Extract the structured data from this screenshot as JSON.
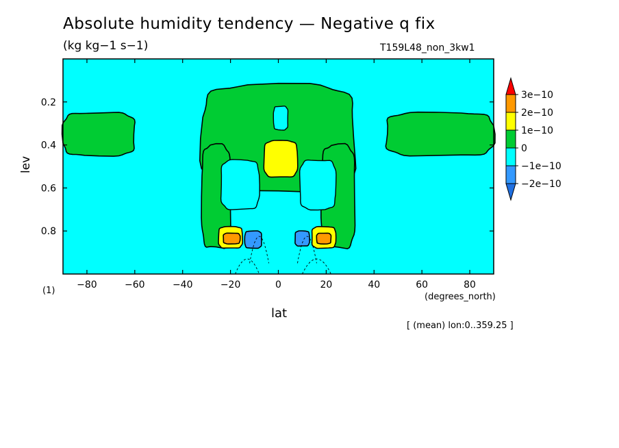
{
  "header": {
    "title": "Absolute humidity tendency — Negative q fix",
    "units": "(kg kg−1 s−1)",
    "run_id": "T159L48_non_3kw1"
  },
  "axes": {
    "x_name": "lat",
    "x_units": "(degrees_north)",
    "y_name": "lev",
    "y_units": "(1)"
  },
  "footnote": "[ (mean) lon:0..359.25 ]",
  "colors": {
    "background": "#00ffff",
    "green": "#00cc33",
    "yellow": "#ffff00",
    "orange": "#ff9900",
    "red": "#ff0000",
    "blue": "#3399ff",
    "frame": "#000000"
  },
  "chart_data": {
    "type": "heatmap",
    "x_ticks": [
      "−80",
      "−60",
      "−40",
      "−20",
      "0",
      "20",
      "40",
      "60",
      "80"
    ],
    "x_tick_values": [
      -80,
      -60,
      -40,
      -20,
      0,
      20,
      40,
      60,
      80
    ],
    "y_ticks": [
      "0.2",
      "0.4",
      "0.6",
      "0.8"
    ],
    "y_tick_values": [
      0.2,
      0.4,
      0.6,
      0.8
    ],
    "xlim": [
      -90,
      90
    ],
    "ylim": [
      1.0,
      0.0
    ],
    "colorbar": {
      "levels": [
        "3e−10",
        "2e−10",
        "1e−10",
        "0",
        "−1e−10",
        "−2e−10"
      ],
      "colors": [
        "#ff0000",
        "#ff9900",
        "#ffff00",
        "#00cc33",
        "#00ffff",
        "#3399ff",
        "#1f6fe0"
      ]
    },
    "regions": [
      {
        "name": "green_tropical_upper",
        "level": "0 to 1e-10",
        "lat": [
          -32,
          32
        ],
        "lev": [
          0.12,
          0.62
        ]
      },
      {
        "name": "green_sh_column",
        "level": "0 to 1e-10",
        "lat": [
          -32,
          -20
        ],
        "lev": [
          0.4,
          0.88
        ]
      },
      {
        "name": "green_nh_column",
        "level": "0 to 1e-10",
        "lat": [
          18,
          32
        ],
        "lev": [
          0.4,
          0.88
        ]
      },
      {
        "name": "green_sh_midlat_band",
        "level": "0 to 1e-10",
        "lat": [
          -90,
          -60
        ],
        "lev": [
          0.25,
          0.45
        ]
      },
      {
        "name": "green_nh_midlat_band",
        "level": "0 to 1e-10",
        "lat": [
          45,
          90
        ],
        "lev": [
          0.25,
          0.45
        ]
      },
      {
        "name": "yellow_center",
        "level": "1e-10 to 2e-10",
        "lat": [
          -6,
          8
        ],
        "lev": [
          0.38,
          0.55
        ]
      },
      {
        "name": "yellow_sh_low",
        "level": "1e-10 to 2e-10",
        "lat": [
          -25,
          -15
        ],
        "lev": [
          0.78,
          0.88
        ]
      },
      {
        "name": "yellow_nh_low",
        "level": "1e-10 to 2e-10",
        "lat": [
          14,
          24
        ],
        "lev": [
          0.78,
          0.88
        ]
      },
      {
        "name": "orange_sh_low",
        "level": "2e-10 to 3e-10",
        "lat": [
          -23,
          -16
        ],
        "lev": [
          0.81,
          0.86
        ]
      },
      {
        "name": "orange_nh_low",
        "level": "2e-10 to 3e-10",
        "lat": [
          16,
          22
        ],
        "lev": [
          0.81,
          0.86
        ]
      },
      {
        "name": "blue_sh_low",
        "level": "-2e-10 to -1e-10",
        "lat": [
          -14,
          -7
        ],
        "lev": [
          0.8,
          0.88
        ]
      },
      {
        "name": "blue_nh_low",
        "level": "-2e-10 to -1e-10",
        "lat": [
          7,
          13
        ],
        "lev": [
          0.8,
          0.87
        ]
      }
    ]
  }
}
